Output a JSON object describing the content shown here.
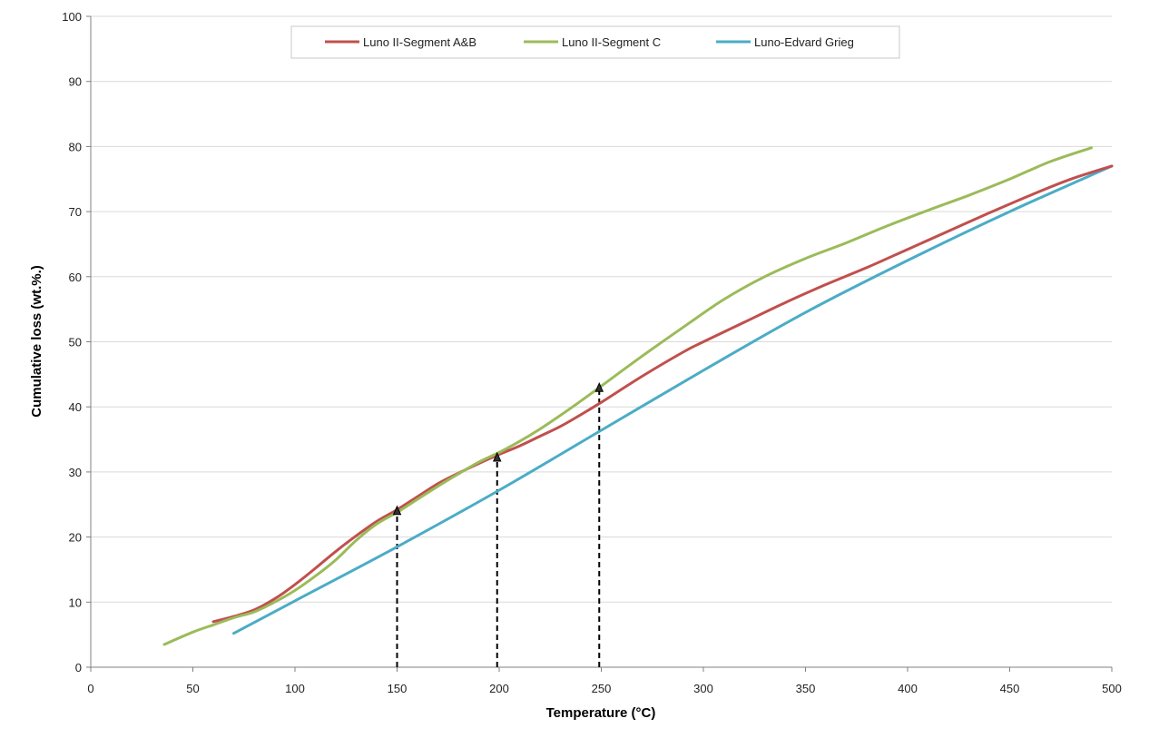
{
  "chart_data": {
    "type": "line",
    "xlabel": "Temperature (°C)",
    "ylabel": "Cumulative loss (wt.%.)",
    "xlim": [
      0,
      500
    ],
    "ylim": [
      0,
      100
    ],
    "xticks": [
      0,
      50,
      100,
      150,
      200,
      250,
      300,
      350,
      400,
      450,
      500
    ],
    "yticks": [
      0,
      10,
      20,
      30,
      40,
      50,
      60,
      70,
      80,
      90,
      100
    ],
    "grid": "horizontal",
    "legend_position": "top",
    "series": [
      {
        "name": "Luno II-Segment A&B",
        "color": "#c0504d",
        "points": [
          [
            60,
            7
          ],
          [
            70,
            7.8
          ],
          [
            80,
            8.8
          ],
          [
            90,
            10.5
          ],
          [
            100,
            12.7
          ],
          [
            110,
            15.2
          ],
          [
            120,
            17.8
          ],
          [
            130,
            20.2
          ],
          [
            140,
            22.4
          ],
          [
            150,
            24.2
          ],
          [
            160,
            26.2
          ],
          [
            170,
            28.2
          ],
          [
            180,
            29.8
          ],
          [
            190,
            31.3
          ],
          [
            200,
            32.7
          ],
          [
            210,
            34
          ],
          [
            220,
            35.5
          ],
          [
            230,
            37
          ],
          [
            240,
            38.8
          ],
          [
            250,
            40.7
          ],
          [
            270,
            44.7
          ],
          [
            290,
            48.4
          ],
          [
            300,
            50
          ],
          [
            320,
            53
          ],
          [
            340,
            56
          ],
          [
            360,
            58.8
          ],
          [
            380,
            61.4
          ],
          [
            400,
            64.2
          ],
          [
            420,
            67
          ],
          [
            440,
            69.8
          ],
          [
            460,
            72.5
          ],
          [
            480,
            75
          ],
          [
            500,
            77
          ]
        ]
      },
      {
        "name": "Luno II-Segment C",
        "color": "#9bbb59",
        "points": [
          [
            36,
            3.5
          ],
          [
            50,
            5.4
          ],
          [
            60,
            6.5
          ],
          [
            70,
            7.6
          ],
          [
            80,
            8.5
          ],
          [
            90,
            10
          ],
          [
            100,
            11.8
          ],
          [
            110,
            14
          ],
          [
            120,
            16.5
          ],
          [
            130,
            19.5
          ],
          [
            140,
            22
          ],
          [
            150,
            23.8
          ],
          [
            160,
            25.8
          ],
          [
            170,
            27.8
          ],
          [
            180,
            29.7
          ],
          [
            190,
            31.5
          ],
          [
            200,
            33
          ],
          [
            210,
            34.7
          ],
          [
            220,
            36.6
          ],
          [
            230,
            38.7
          ],
          [
            240,
            40.9
          ],
          [
            250,
            43.2
          ],
          [
            270,
            47.8
          ],
          [
            290,
            52.2
          ],
          [
            310,
            56.5
          ],
          [
            330,
            60
          ],
          [
            350,
            62.8
          ],
          [
            370,
            65.2
          ],
          [
            390,
            67.8
          ],
          [
            410,
            70.2
          ],
          [
            430,
            72.5
          ],
          [
            450,
            75
          ],
          [
            470,
            77.7
          ],
          [
            490,
            79.8
          ]
        ]
      },
      {
        "name": "Luno-Edvard Grieg",
        "color": "#4bacc6",
        "points": [
          [
            70,
            5.2
          ],
          [
            100,
            10.2
          ],
          [
            150,
            18.5
          ],
          [
            200,
            27.2
          ],
          [
            250,
            36.4
          ],
          [
            300,
            45.6
          ],
          [
            350,
            54.5
          ],
          [
            400,
            62.5
          ],
          [
            450,
            70
          ],
          [
            500,
            77
          ]
        ]
      }
    ],
    "markers": [
      {
        "x": 150,
        "y": 24.3
      },
      {
        "x": 199,
        "y": 32.5
      },
      {
        "x": 249,
        "y": 43.2
      }
    ]
  }
}
